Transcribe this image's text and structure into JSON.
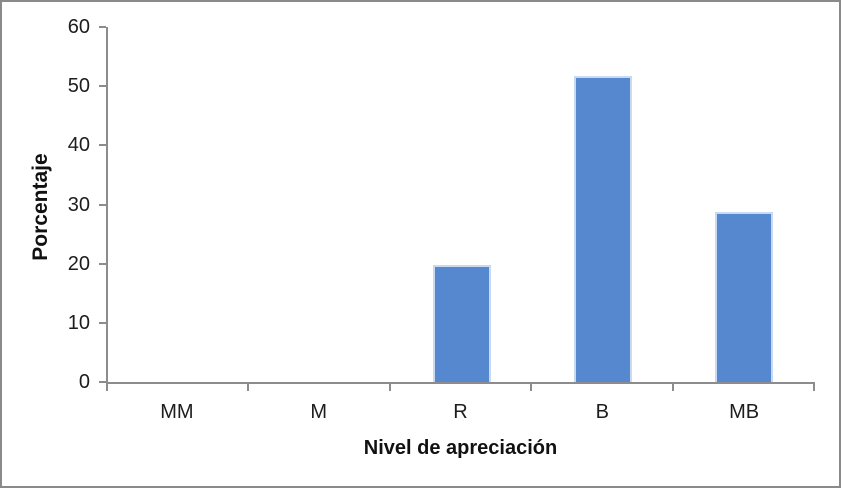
{
  "chart_data": {
    "type": "bar",
    "title": "",
    "categories": [
      "MM",
      "M",
      "R",
      "B",
      "MB"
    ],
    "values": [
      0,
      0,
      19.7,
      51.8,
      28.8
    ],
    "xlabel": "Nivel de apreciación",
    "ylabel": "Porcentaje",
    "ylim": [
      0,
      60
    ],
    "yticks": [
      0,
      10,
      20,
      30,
      40,
      50,
      60
    ],
    "grid": false,
    "legend_position": "none",
    "bar_color": "#5588CE",
    "bar_border_color": "#C8D9F0",
    "axis_color": "#8C8C8C",
    "frame_border_color": "#8A8A8A",
    "plot_background": "#FFFFFF"
  }
}
